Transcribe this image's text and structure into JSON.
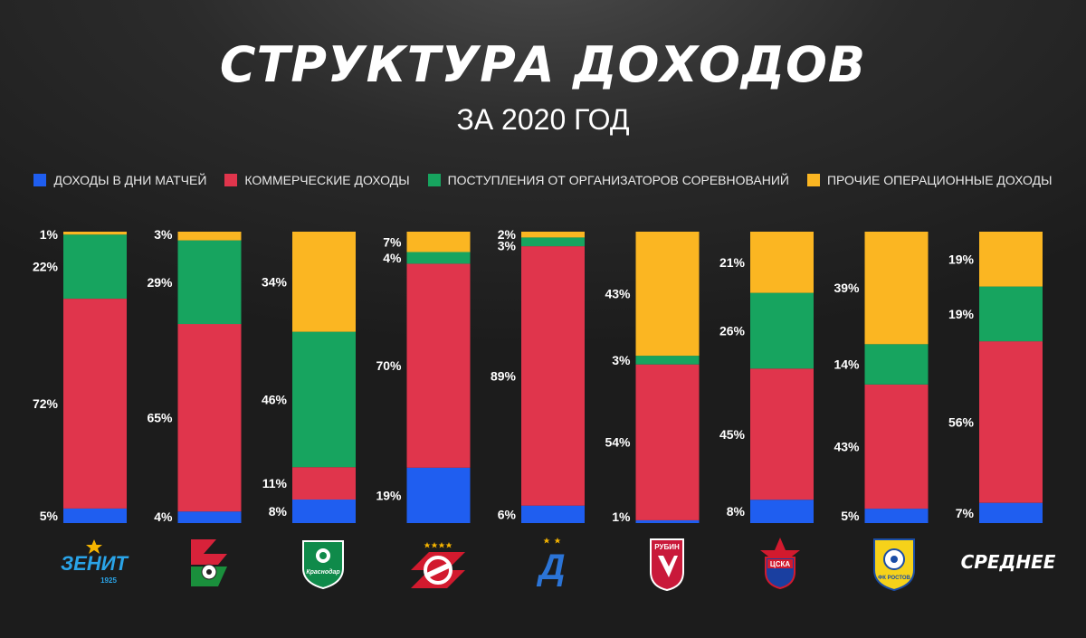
{
  "title": "СТРУКТУРА ДОХОДОВ",
  "subtitle": "ЗА 2020 ГОД",
  "colors": {
    "matchday": "#1f5ef0",
    "commercial": "#e0354c",
    "competition": "#17a45f",
    "other": "#fbb622"
  },
  "legend": [
    {
      "key": "matchday",
      "label": "ДОХОДЫ В ДНИ МАТЧЕЙ"
    },
    {
      "key": "commercial",
      "label": "КОММЕРЧЕСКИЕ ДОХОДЫ"
    },
    {
      "key": "competition",
      "label": "ПОСТУПЛЕНИЯ ОТ ОРГАНИЗАТОРОВ СОРЕВНОВАНИЙ"
    },
    {
      "key": "other",
      "label": "ПРОЧИЕ ОПЕРАЦИОННЫЕ ДОХОДЫ"
    }
  ],
  "logos": {
    "zenit": "ЗЕНИТ",
    "zenit_year": "1925",
    "krasnodar": "Краснодар",
    "dinamo": "Д",
    "rubin": "РУБИН",
    "cska": "ЦСКА",
    "rostov": "ФК РОСТОВ"
  },
  "chart_data": {
    "type": "bar",
    "stacked": true,
    "normalized": true,
    "ylim": [
      0,
      100
    ],
    "categories": [
      "zenit",
      "lokomotiv",
      "krasnodar",
      "spartak",
      "dinamo",
      "rubin",
      "cska",
      "rostov",
      "СРЕДНЕЕ"
    ],
    "category_display": [
      "logo-zenit",
      "logo-lokomotiv",
      "logo-krasnodar",
      "logo-spartak",
      "logo-dinamo",
      "logo-rubin",
      "logo-cska",
      "logo-rostov",
      "СРЕДНЕЕ"
    ],
    "series": [
      {
        "name": "ДОХОДЫ В ДНИ МАТЧЕЙ",
        "key": "matchday",
        "values": [
          5,
          4,
          8,
          19,
          6,
          1,
          8,
          5,
          7
        ]
      },
      {
        "name": "КОММЕРЧЕСКИЕ ДОХОДЫ",
        "key": "commercial",
        "values": [
          72,
          65,
          11,
          70,
          89,
          54,
          45,
          43,
          56
        ]
      },
      {
        "name": "ПОСТУПЛЕНИЯ ОТ ОРГАНИЗАТОРОВ СОРЕВНОВАНИЙ",
        "key": "competition",
        "values": [
          22,
          29,
          46,
          4,
          3,
          3,
          26,
          14,
          19
        ]
      },
      {
        "name": "ПРОЧИЕ ОПЕРАЦИОННЫЕ ДОХОДЫ",
        "key": "other",
        "values": [
          1,
          3,
          34,
          7,
          2,
          43,
          21,
          39,
          19
        ]
      }
    ],
    "value_suffix": "%",
    "legend_position": "top",
    "grid": false
  }
}
